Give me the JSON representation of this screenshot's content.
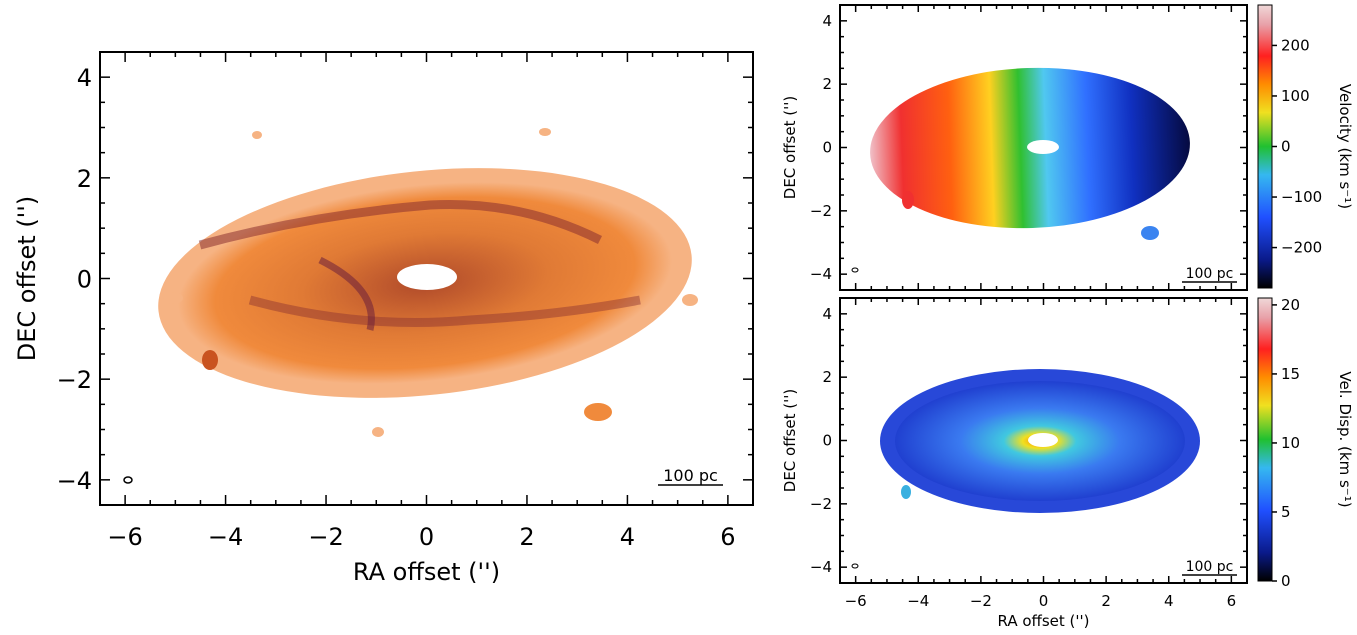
{
  "chart_data": [
    {
      "type": "heatmap",
      "panel": "integrated-intensity",
      "xlabel": "RA offset ('')",
      "ylabel": "DEC offset ('')",
      "xlim": [
        -6.5,
        6.5
      ],
      "ylim": [
        -4.5,
        4.5
      ],
      "xticks": [
        "−6",
        "−4",
        "−2",
        "0",
        "2",
        "4",
        "6"
      ],
      "yticks": [
        "−4",
        "−2",
        "0",
        "2",
        "4"
      ],
      "scalebar_label": "100 pc",
      "colors": [
        "#f6b383",
        "#f08a3c",
        "#c9531f",
        "#6b1f3a"
      ]
    },
    {
      "type": "heatmap",
      "panel": "velocity",
      "ylabel": "DEC offset ('')",
      "xlim": [
        -6.5,
        6.5
      ],
      "ylim": [
        -4.5,
        4.5
      ],
      "xticks": [
        "−6",
        "−4",
        "−2",
        "0",
        "2",
        "4",
        "6"
      ],
      "yticks": [
        "−4",
        "−2",
        "0",
        "2",
        "4"
      ],
      "scalebar_label": "100 pc",
      "colorbar": {
        "label": "Velocity (km s⁻¹)",
        "range": [
          -280,
          280
        ],
        "ticks": [
          {
            "value": 200,
            "label": "200"
          },
          {
            "value": 100,
            "label": "100"
          },
          {
            "value": 0,
            "label": "0"
          },
          {
            "value": -100,
            "label": "−100"
          },
          {
            "value": -200,
            "label": "−200"
          }
        ],
        "colors": [
          "#000000",
          "#0a1a8a",
          "#2050ff",
          "#35b8f0",
          "#20c030",
          "#f0e020",
          "#ff8c00",
          "#ff2020",
          "#e8a0a8",
          "#f0d8d8"
        ]
      }
    },
    {
      "type": "heatmap",
      "panel": "velocity-dispersion",
      "xlabel": "RA offset ('')",
      "ylabel": "DEC offset ('')",
      "xlim": [
        -6.5,
        6.5
      ],
      "ylim": [
        -4.5,
        4.5
      ],
      "xticks": [
        "−6",
        "−4",
        "−2",
        "0",
        "2",
        "4",
        "6"
      ],
      "yticks": [
        "−4",
        "−2",
        "0",
        "2",
        "4"
      ],
      "scalebar_label": "100 pc",
      "colorbar": {
        "label": "Vel. Disp. (km s⁻¹)",
        "range": [
          0,
          20.5
        ],
        "ticks": [
          {
            "value": 20,
            "label": "20"
          },
          {
            "value": 15,
            "label": "15"
          },
          {
            "value": 10,
            "label": "10"
          },
          {
            "value": 5,
            "label": "5"
          },
          {
            "value": 0,
            "label": "0"
          }
        ],
        "colors": [
          "#000000",
          "#0a1a8a",
          "#2050ff",
          "#35b8f0",
          "#20c030",
          "#f0e020",
          "#ff8c00",
          "#ff2020",
          "#e8a0a8",
          "#f0d8d8"
        ]
      }
    }
  ]
}
